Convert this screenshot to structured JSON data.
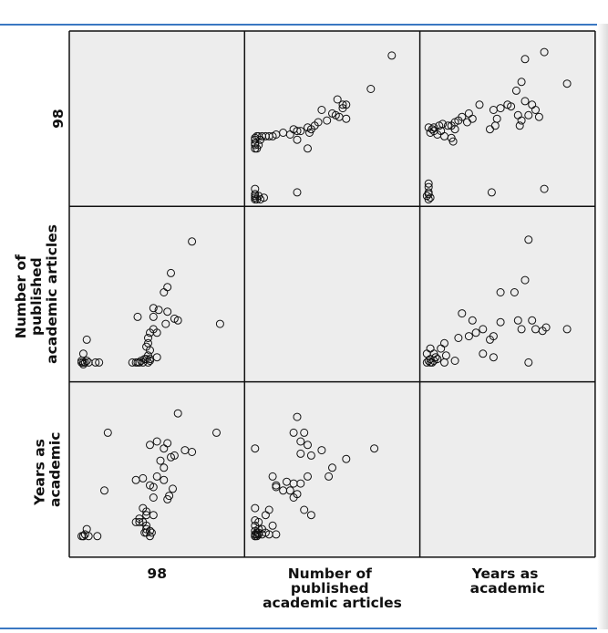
{
  "chart_data": {
    "type": "scatter-matrix",
    "variables": [
      "98",
      "Number of published academic articles",
      "Years as academic"
    ],
    "variable_label_lines": [
      [
        "98"
      ],
      [
        "Number of",
        "published",
        "academic articles"
      ],
      [
        "Years as",
        "academic"
      ]
    ],
    "panels": {
      "y98_x_articles": {
        "comment": "row 1 (98) vs column 2 (Number of published academic articles)",
        "points": [
          [
            0.84,
            0.86
          ],
          [
            0.72,
            0.67
          ],
          [
            0.53,
            0.61
          ],
          [
            0.58,
            0.58
          ],
          [
            0.56,
            0.56
          ],
          [
            0.5,
            0.53
          ],
          [
            0.47,
            0.49
          ],
          [
            0.42,
            0.48
          ],
          [
            0.38,
            0.44
          ],
          [
            0.37,
            0.42
          ],
          [
            0.4,
            0.46
          ],
          [
            0.32,
            0.43
          ],
          [
            0.3,
            0.43
          ],
          [
            0.28,
            0.44
          ],
          [
            0.26,
            0.41
          ],
          [
            0.22,
            0.42
          ],
          [
            0.18,
            0.41
          ],
          [
            0.16,
            0.4
          ],
          [
            0.14,
            0.4
          ],
          [
            0.12,
            0.4
          ],
          [
            0.1,
            0.4
          ],
          [
            0.08,
            0.4
          ],
          [
            0.07,
            0.4
          ],
          [
            0.06,
            0.39
          ],
          [
            0.06,
            0.38
          ],
          [
            0.06,
            0.36
          ],
          [
            0.06,
            0.35
          ],
          [
            0.08,
            0.35
          ],
          [
            0.09,
            0.38
          ],
          [
            0.07,
            0.33
          ],
          [
            0.06,
            0.33
          ],
          [
            0.36,
            0.33
          ],
          [
            0.56,
            0.58
          ],
          [
            0.52,
            0.52
          ],
          [
            0.58,
            0.5
          ],
          [
            0.3,
            0.38
          ],
          [
            0.36,
            0.45
          ],
          [
            0.44,
            0.55
          ],
          [
            0.54,
            0.51
          ],
          [
            0.06,
            0.1
          ],
          [
            0.08,
            0.06
          ],
          [
            0.06,
            0.04
          ],
          [
            0.07,
            0.04
          ],
          [
            0.06,
            0.06
          ],
          [
            0.06,
            0.07
          ],
          [
            0.06,
            0.05
          ],
          [
            0.3,
            0.08
          ],
          [
            0.09,
            0.04
          ],
          [
            0.11,
            0.05
          ]
        ]
      },
      "y98_x_years": {
        "comment": "row 1 (98) vs column 3 (Years as academic)",
        "points": [
          [
            0.71,
            0.88
          ],
          [
            0.6,
            0.84
          ],
          [
            0.84,
            0.7
          ],
          [
            0.58,
            0.71
          ],
          [
            0.55,
            0.66
          ],
          [
            0.6,
            0.6
          ],
          [
            0.64,
            0.58
          ],
          [
            0.66,
            0.55
          ],
          [
            0.52,
            0.57
          ],
          [
            0.5,
            0.58
          ],
          [
            0.42,
            0.55
          ],
          [
            0.46,
            0.56
          ],
          [
            0.34,
            0.58
          ],
          [
            0.28,
            0.53
          ],
          [
            0.3,
            0.5
          ],
          [
            0.24,
            0.51
          ],
          [
            0.27,
            0.48
          ],
          [
            0.22,
            0.49
          ],
          [
            0.2,
            0.48
          ],
          [
            0.18,
            0.46
          ],
          [
            0.16,
            0.46
          ],
          [
            0.13,
            0.47
          ],
          [
            0.11,
            0.46
          ],
          [
            0.08,
            0.45
          ],
          [
            0.05,
            0.45
          ],
          [
            0.07,
            0.44
          ],
          [
            0.08,
            0.43
          ],
          [
            0.06,
            0.42
          ],
          [
            0.12,
            0.43
          ],
          [
            0.2,
            0.44
          ],
          [
            0.14,
            0.4
          ],
          [
            0.1,
            0.41
          ],
          [
            0.18,
            0.39
          ],
          [
            0.19,
            0.37
          ],
          [
            0.44,
            0.5
          ],
          [
            0.43,
            0.46
          ],
          [
            0.4,
            0.44
          ],
          [
            0.57,
            0.46
          ],
          [
            0.58,
            0.49
          ],
          [
            0.56,
            0.52
          ],
          [
            0.62,
            0.52
          ],
          [
            0.68,
            0.51
          ],
          [
            0.71,
            0.1
          ],
          [
            0.41,
            0.08
          ],
          [
            0.05,
            0.07
          ],
          [
            0.05,
            0.04
          ],
          [
            0.06,
            0.05
          ],
          [
            0.04,
            0.06
          ],
          [
            0.05,
            0.08
          ],
          [
            0.05,
            0.11
          ],
          [
            0.05,
            0.13
          ]
        ]
      },
      "articles_x_98": {
        "comment": "row 2 (Number of published academic articles) vs column 1 (98)",
        "points": [
          [
            0.7,
            0.8
          ],
          [
            0.58,
            0.62
          ],
          [
            0.56,
            0.54
          ],
          [
            0.54,
            0.51
          ],
          [
            0.86,
            0.33
          ],
          [
            0.39,
            0.37
          ],
          [
            0.48,
            0.42
          ],
          [
            0.51,
            0.41
          ],
          [
            0.56,
            0.4
          ],
          [
            0.6,
            0.36
          ],
          [
            0.62,
            0.35
          ],
          [
            0.55,
            0.33
          ],
          [
            0.48,
            0.37
          ],
          [
            0.48,
            0.3
          ],
          [
            0.5,
            0.28
          ],
          [
            0.46,
            0.28
          ],
          [
            0.45,
            0.25
          ],
          [
            0.45,
            0.22
          ],
          [
            0.44,
            0.2
          ],
          [
            0.46,
            0.18
          ],
          [
            0.45,
            0.15
          ],
          [
            0.44,
            0.13
          ],
          [
            0.46,
            0.12
          ],
          [
            0.4,
            0.11
          ],
          [
            0.38,
            0.11
          ],
          [
            0.39,
            0.11
          ],
          [
            0.36,
            0.11
          ],
          [
            0.41,
            0.12
          ],
          [
            0.43,
            0.13
          ],
          [
            0.46,
            0.13
          ],
          [
            0.45,
            0.11
          ],
          [
            0.42,
            0.11
          ],
          [
            0.5,
            0.14
          ],
          [
            0.1,
            0.24
          ],
          [
            0.08,
            0.16
          ],
          [
            0.07,
            0.12
          ],
          [
            0.08,
            0.11
          ],
          [
            0.07,
            0.11
          ],
          [
            0.08,
            0.1
          ],
          [
            0.09,
            0.11
          ],
          [
            0.1,
            0.12
          ],
          [
            0.11,
            0.11
          ],
          [
            0.15,
            0.11
          ],
          [
            0.17,
            0.11
          ]
        ]
      },
      "articles_x_years": {
        "comment": "row 2 (Number of published academic articles) vs column 3 (Years as academic)",
        "points": [
          [
            0.62,
            0.81
          ],
          [
            0.6,
            0.58
          ],
          [
            0.46,
            0.51
          ],
          [
            0.54,
            0.51
          ],
          [
            0.24,
            0.39
          ],
          [
            0.3,
            0.35
          ],
          [
            0.46,
            0.34
          ],
          [
            0.56,
            0.35
          ],
          [
            0.64,
            0.35
          ],
          [
            0.72,
            0.31
          ],
          [
            0.66,
            0.3
          ],
          [
            0.7,
            0.29
          ],
          [
            0.84,
            0.3
          ],
          [
            0.58,
            0.3
          ],
          [
            0.36,
            0.3
          ],
          [
            0.32,
            0.28
          ],
          [
            0.28,
            0.26
          ],
          [
            0.42,
            0.26
          ],
          [
            0.4,
            0.24
          ],
          [
            0.22,
            0.25
          ],
          [
            0.14,
            0.22
          ],
          [
            0.12,
            0.19
          ],
          [
            0.08,
            0.16
          ],
          [
            0.06,
            0.19
          ],
          [
            0.15,
            0.15
          ],
          [
            0.09,
            0.14
          ],
          [
            0.06,
            0.13
          ],
          [
            0.08,
            0.12
          ],
          [
            0.1,
            0.13
          ],
          [
            0.06,
            0.11
          ],
          [
            0.07,
            0.11
          ],
          [
            0.04,
            0.11
          ],
          [
            0.05,
            0.12
          ],
          [
            0.04,
            0.16
          ],
          [
            0.2,
            0.12
          ],
          [
            0.14,
            0.11
          ],
          [
            0.36,
            0.16
          ],
          [
            0.42,
            0.14
          ],
          [
            0.62,
            0.11
          ]
        ]
      },
      "years_x_98": {
        "comment": "row 3 (Years as academic) vs column 1 (98)",
        "points": [
          [
            0.62,
            0.82
          ],
          [
            0.84,
            0.71
          ],
          [
            0.22,
            0.71
          ],
          [
            0.46,
            0.64
          ],
          [
            0.5,
            0.66
          ],
          [
            0.54,
            0.62
          ],
          [
            0.56,
            0.65
          ],
          [
            0.58,
            0.57
          ],
          [
            0.6,
            0.58
          ],
          [
            0.66,
            0.61
          ],
          [
            0.7,
            0.6
          ],
          [
            0.52,
            0.55
          ],
          [
            0.54,
            0.51
          ],
          [
            0.5,
            0.46
          ],
          [
            0.54,
            0.44
          ],
          [
            0.38,
            0.44
          ],
          [
            0.42,
            0.45
          ],
          [
            0.46,
            0.41
          ],
          [
            0.48,
            0.4
          ],
          [
            0.56,
            0.33
          ],
          [
            0.59,
            0.39
          ],
          [
            0.57,
            0.35
          ],
          [
            0.48,
            0.34
          ],
          [
            0.42,
            0.28
          ],
          [
            0.44,
            0.26
          ],
          [
            0.44,
            0.24
          ],
          [
            0.48,
            0.24
          ],
          [
            0.42,
            0.2
          ],
          [
            0.4,
            0.2
          ],
          [
            0.38,
            0.2
          ],
          [
            0.4,
            0.22
          ],
          [
            0.44,
            0.18
          ],
          [
            0.44,
            0.16
          ],
          [
            0.46,
            0.15
          ],
          [
            0.44,
            0.14
          ],
          [
            0.43,
            0.14
          ],
          [
            0.46,
            0.12
          ],
          [
            0.47,
            0.14
          ],
          [
            0.2,
            0.38
          ],
          [
            0.1,
            0.16
          ],
          [
            0.08,
            0.12
          ],
          [
            0.07,
            0.12
          ],
          [
            0.08,
            0.12
          ],
          [
            0.09,
            0.13
          ],
          [
            0.11,
            0.12
          ],
          [
            0.16,
            0.12
          ]
        ]
      },
      "years_x_articles": {
        "comment": "row 3 (Years as academic) vs column 2 (Number of published academic articles)",
        "points": [
          [
            0.3,
            0.8
          ],
          [
            0.34,
            0.71
          ],
          [
            0.28,
            0.71
          ],
          [
            0.32,
            0.66
          ],
          [
            0.36,
            0.64
          ],
          [
            0.38,
            0.58
          ],
          [
            0.32,
            0.59
          ],
          [
            0.44,
            0.61
          ],
          [
            0.58,
            0.56
          ],
          [
            0.5,
            0.51
          ],
          [
            0.48,
            0.46
          ],
          [
            0.36,
            0.46
          ],
          [
            0.32,
            0.42
          ],
          [
            0.28,
            0.42
          ],
          [
            0.24,
            0.43
          ],
          [
            0.26,
            0.38
          ],
          [
            0.28,
            0.34
          ],
          [
            0.3,
            0.36
          ],
          [
            0.22,
            0.38
          ],
          [
            0.18,
            0.4
          ],
          [
            0.16,
            0.46
          ],
          [
            0.18,
            0.41
          ],
          [
            0.06,
            0.62
          ],
          [
            0.14,
            0.27
          ],
          [
            0.12,
            0.24
          ],
          [
            0.08,
            0.2
          ],
          [
            0.38,
            0.24
          ],
          [
            0.34,
            0.27
          ],
          [
            0.06,
            0.28
          ],
          [
            0.06,
            0.21
          ],
          [
            0.06,
            0.18
          ],
          [
            0.06,
            0.15
          ],
          [
            0.07,
            0.14
          ],
          [
            0.06,
            0.13
          ],
          [
            0.06,
            0.12
          ],
          [
            0.07,
            0.12
          ],
          [
            0.08,
            0.13
          ],
          [
            0.1,
            0.13
          ],
          [
            0.12,
            0.14
          ],
          [
            0.14,
            0.13
          ],
          [
            0.1,
            0.16
          ],
          [
            0.08,
            0.16
          ],
          [
            0.74,
            0.62
          ],
          [
            0.06,
            0.12
          ],
          [
            0.07,
            0.13
          ],
          [
            0.18,
            0.13
          ],
          [
            0.08,
            0.14
          ],
          [
            0.16,
            0.18
          ]
        ]
      }
    }
  }
}
